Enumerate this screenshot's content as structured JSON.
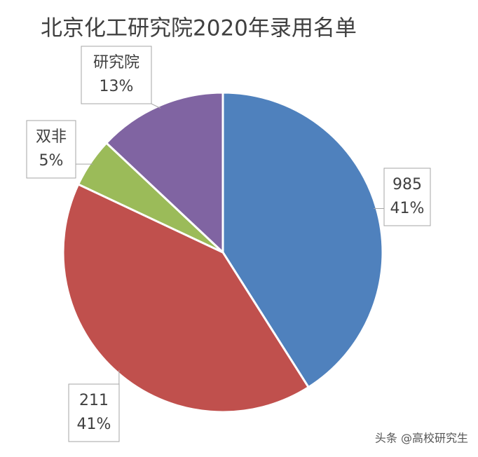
{
  "chart_data": {
    "type": "pie",
    "title": "北京化工研究院2020年录用名单",
    "categories": [
      "985",
      "211",
      "双非",
      "研究院"
    ],
    "values": [
      41,
      41,
      5,
      13
    ],
    "value_labels": [
      "41%",
      "41%",
      "5%",
      "13%"
    ],
    "colors": [
      "#4f81bd",
      "#c0504d",
      "#9bbb59",
      "#8064a2"
    ]
  },
  "watermark": "头条 @高校研究生"
}
